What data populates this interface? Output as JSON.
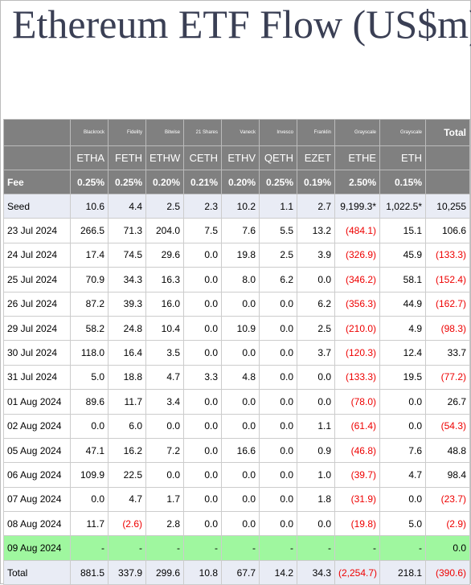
{
  "header": {
    "title": "Ethereum ETF Flow (US$m)"
  },
  "table": {
    "issuers": [
      "Blackrock",
      "Fidelity",
      "Bitwise",
      "21 Shares",
      "Vaneck",
      "Invesco",
      "Franklin",
      "Grayscale",
      "Grayscale"
    ],
    "total_header": "Total",
    "tickers": [
      "ETHA",
      "FETH",
      "ETHW",
      "CETH",
      "ETHV",
      "QETH",
      "EZET",
      "ETHE",
      "ETH"
    ],
    "fee_label": "Fee",
    "fees": [
      "0.25%",
      "0.25%",
      "0.20%",
      "0.21%",
      "0.20%",
      "0.25%",
      "0.19%",
      "2.50%",
      "0.15%"
    ],
    "rows": [
      {
        "label": "Seed",
        "values": [
          "10.6",
          "4.4",
          "2.5",
          "2.3",
          "10.2",
          "1.1",
          "2.7",
          "9,199.3*",
          "1,022.5*",
          "10,255"
        ]
      },
      {
        "label": "23 Jul 2024",
        "values": [
          "266.5",
          "71.3",
          "204.0",
          "7.5",
          "7.6",
          "5.5",
          "13.2",
          "(484.1)",
          "15.1",
          "106.6"
        ]
      },
      {
        "label": "24 Jul 2024",
        "values": [
          "17.4",
          "74.5",
          "29.6",
          "0.0",
          "19.8",
          "2.5",
          "3.9",
          "(326.9)",
          "45.9",
          "(133.3)"
        ]
      },
      {
        "label": "25 Jul 2024",
        "values": [
          "70.9",
          "34.3",
          "16.3",
          "0.0",
          "8.0",
          "6.2",
          "0.0",
          "(346.2)",
          "58.1",
          "(152.4)"
        ]
      },
      {
        "label": "26 Jul 2024",
        "values": [
          "87.2",
          "39.3",
          "16.0",
          "0.0",
          "0.0",
          "0.0",
          "6.2",
          "(356.3)",
          "44.9",
          "(162.7)"
        ]
      },
      {
        "label": "29 Jul 2024",
        "values": [
          "58.2",
          "24.8",
          "10.4",
          "0.0",
          "10.9",
          "0.0",
          "2.5",
          "(210.0)",
          "4.9",
          "(98.3)"
        ]
      },
      {
        "label": "30 Jul 2024",
        "values": [
          "118.0",
          "16.4",
          "3.5",
          "0.0",
          "0.0",
          "0.0",
          "3.7",
          "(120.3)",
          "12.4",
          "33.7"
        ]
      },
      {
        "label": "31 Jul 2024",
        "values": [
          "5.0",
          "18.8",
          "4.7",
          "3.3",
          "4.8",
          "0.0",
          "0.0",
          "(133.3)",
          "19.5",
          "(77.2)"
        ]
      },
      {
        "label": "01 Aug 2024",
        "values": [
          "89.6",
          "11.7",
          "3.4",
          "0.0",
          "0.0",
          "0.0",
          "0.0",
          "(78.0)",
          "0.0",
          "26.7"
        ]
      },
      {
        "label": "02 Aug 2024",
        "values": [
          "0.0",
          "6.0",
          "0.0",
          "0.0",
          "0.0",
          "0.0",
          "1.1",
          "(61.4)",
          "0.0",
          "(54.3)"
        ]
      },
      {
        "label": "05 Aug 2024",
        "values": [
          "47.1",
          "16.2",
          "7.2",
          "0.0",
          "16.6",
          "0.0",
          "0.9",
          "(46.8)",
          "7.6",
          "48.8"
        ]
      },
      {
        "label": "06 Aug 2024",
        "values": [
          "109.9",
          "22.5",
          "0.0",
          "0.0",
          "0.0",
          "0.0",
          "1.0",
          "(39.7)",
          "4.7",
          "98.4"
        ]
      },
      {
        "label": "07 Aug 2024",
        "values": [
          "0.0",
          "4.7",
          "1.7",
          "0.0",
          "0.0",
          "0.0",
          "1.8",
          "(31.9)",
          "0.0",
          "(23.7)"
        ]
      },
      {
        "label": "08 Aug 2024",
        "values": [
          "11.7",
          "(2.6)",
          "2.8",
          "0.0",
          "0.0",
          "0.0",
          "0.0",
          "(19.8)",
          "5.0",
          "(2.9)"
        ]
      },
      {
        "label": "09 Aug 2024",
        "values": [
          "-",
          "-",
          "-",
          "-",
          "-",
          "-",
          "-",
          "-",
          "-",
          "0.0"
        ]
      },
      {
        "label": "Total",
        "values": [
          "881.5",
          "337.9",
          "299.6",
          "10.8",
          "67.7",
          "14.2",
          "34.3",
          "(2,254.7)",
          "218.1",
          "(390.6)"
        ]
      }
    ]
  }
}
